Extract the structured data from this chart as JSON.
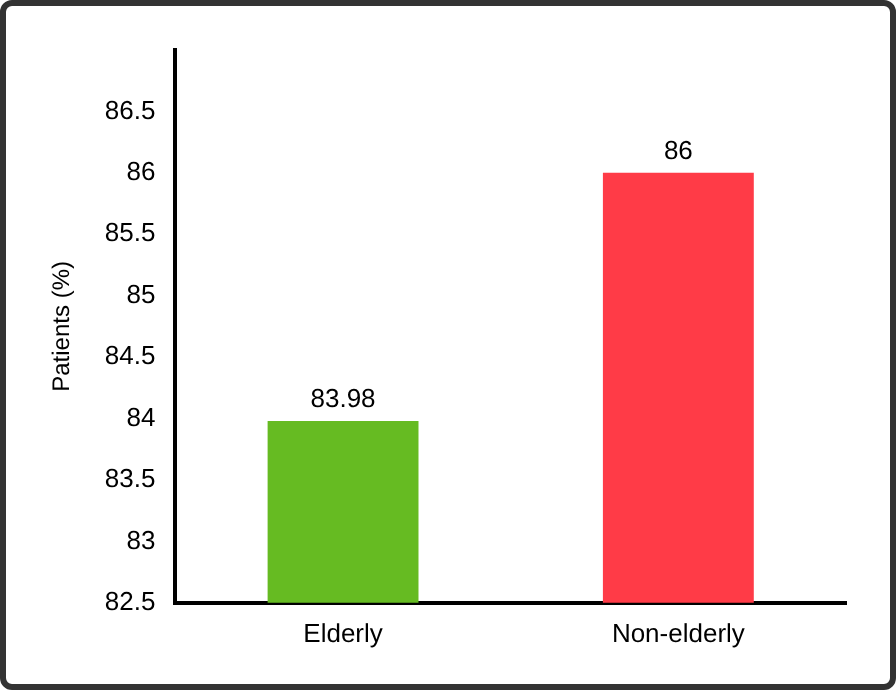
{
  "chart_data": {
    "type": "bar",
    "ylabel": "Patients (%)",
    "categories": [
      "Elderly",
      "Non-elderly"
    ],
    "values": [
      83.98,
      86
    ],
    "colors": [
      "#66bb22",
      "#ff3b47"
    ],
    "ylim": [
      82.5,
      87
    ],
    "yticks": [
      82.5,
      83,
      83.5,
      84,
      84.5,
      85,
      85.5,
      86,
      86.5
    ],
    "grid": false,
    "data_labels": true,
    "legend": false
  }
}
